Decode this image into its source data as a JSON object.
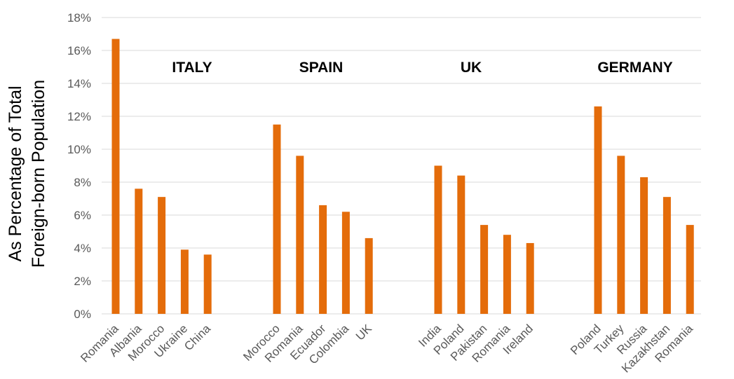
{
  "chart_data": {
    "type": "bar",
    "ylabel_lines": [
      "As Percentage of Total",
      "Foreign-born Population"
    ],
    "ylim": [
      0,
      18
    ],
    "y_ticks": [
      0,
      2,
      4,
      6,
      8,
      10,
      12,
      14,
      16,
      18
    ],
    "y_tick_labels": [
      "0%",
      "2%",
      "4%",
      "6%",
      "8%",
      "10%",
      "12%",
      "14%",
      "16%",
      "18%"
    ],
    "grid": true,
    "bar_color": "#E46C0A",
    "groups": [
      {
        "label": "ITALY",
        "categories": [
          "Romania",
          "Albania",
          "Morocco",
          "Ukraine",
          "China"
        ],
        "values": [
          16.7,
          7.6,
          7.1,
          3.9,
          3.6
        ]
      },
      {
        "label": "SPAIN",
        "categories": [
          "Morocco",
          "Romania",
          "Ecuador",
          "Colombia",
          "UK"
        ],
        "values": [
          11.5,
          9.6,
          6.6,
          6.2,
          4.6
        ]
      },
      {
        "label": "UK",
        "categories": [
          "India",
          "Poland",
          "Pakistan",
          "Romania",
          "Ireland"
        ],
        "values": [
          9.0,
          8.4,
          5.4,
          4.8,
          4.3
        ]
      },
      {
        "label": "GERMANY",
        "categories": [
          "Poland",
          "Turkey",
          "Russia",
          "Kazakhstan",
          "Romania"
        ],
        "values": [
          12.6,
          9.6,
          8.3,
          7.1,
          5.4
        ]
      }
    ]
  }
}
